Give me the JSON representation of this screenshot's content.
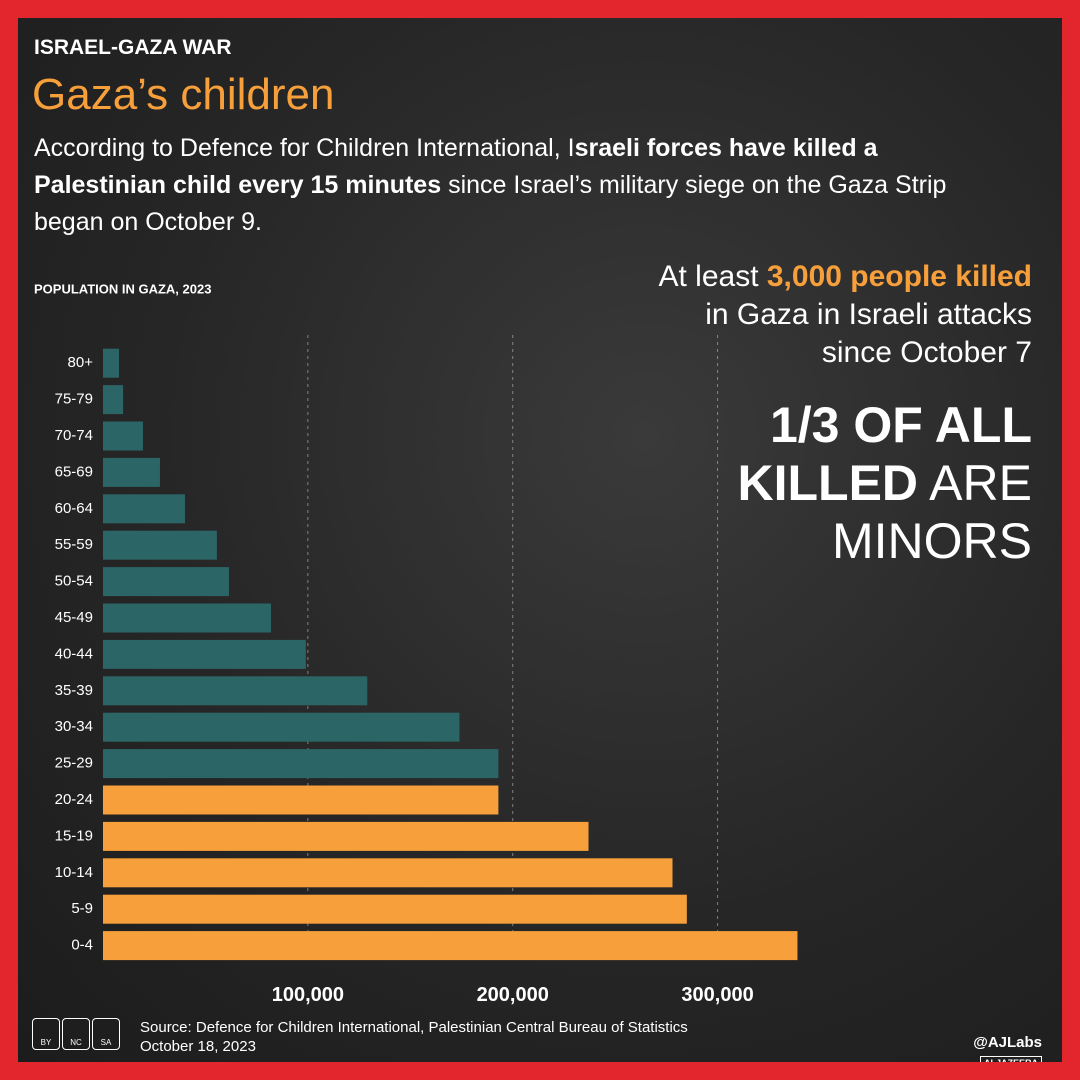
{
  "chart_data": {
    "type": "hbar",
    "kicker": "ISRAEL-GAZA WAR",
    "title": "Gaza’s children",
    "subtitle": [
      "According to Defence for Children International, I",
      "sraeli forces have killed a Palestinian child every 15 minutes",
      " since Israel’s military siege on the Gaza Strip began on October 9."
    ],
    "annotation": [
      "At least ",
      "3,000 people killed",
      "in Gaza in Israeli attacks",
      "since October 7"
    ],
    "callout": [
      "1/3 OF ALL",
      "KILLED",
      " ARE",
      "MINORS"
    ],
    "xlabel": "POPULATION IN GAZA, 2023",
    "categories": [
      "80+",
      "75-79",
      "70-74",
      "65-69",
      "60-64",
      "55-59",
      "50-54",
      "45-49",
      "40-44",
      "35-39",
      "30-34",
      "25-29",
      "20-24",
      "15-19",
      "10-14",
      "5-9",
      "0-4"
    ],
    "values": [
      7800,
      9800,
      19500,
      27800,
      40000,
      55600,
      61500,
      82000,
      99000,
      129000,
      174000,
      193000,
      193000,
      237000,
      278000,
      285000,
      339000
    ],
    "colors": [
      "#2c6566",
      "#2c6566",
      "#2c6566",
      "#2c6566",
      "#2c6566",
      "#2c6566",
      "#2c6566",
      "#2c6566",
      "#2c6566",
      "#2c6566",
      "#2c6566",
      "#2c6566",
      "#f7a03b",
      "#f7a03b",
      "#f7a03b",
      "#f7a03b",
      "#f7a03b"
    ],
    "xlim": [
      0,
      350000
    ],
    "xticks": [
      {
        "value": 100000,
        "label": "100,000"
      },
      {
        "value": 200000,
        "label": "200,000"
      },
      {
        "value": 300000,
        "label": "300,000"
      }
    ],
    "grid": true,
    "license": [
      "BY",
      "NC",
      "SA"
    ],
    "source": "Source:  Defence for Children International, Palestinian Central Bureau of Statistics",
    "date": "October 18, 2023",
    "credit": "@AJLabs",
    "logo": "ALJAZEERA"
  }
}
